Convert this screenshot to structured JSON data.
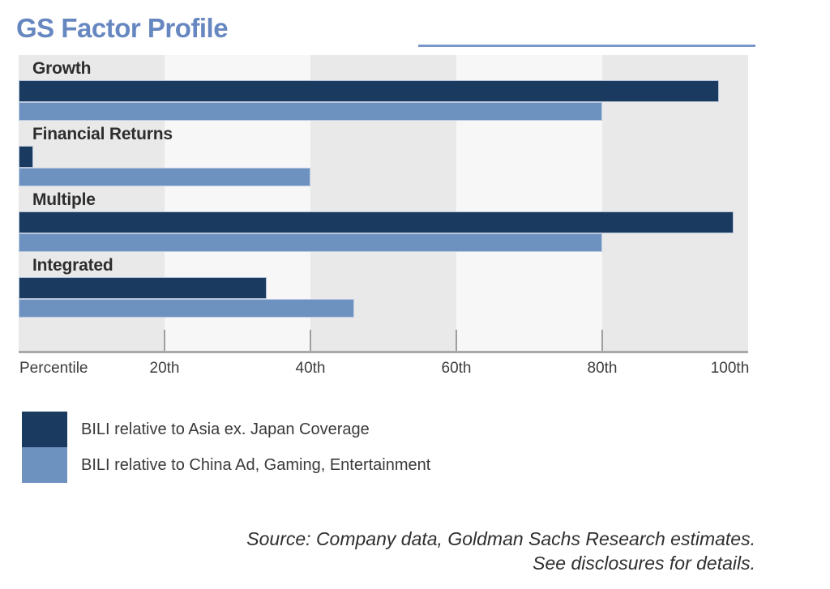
{
  "title": "GS Factor Profile",
  "chart_data": {
    "type": "bar",
    "orientation": "horizontal",
    "title": "GS Factor Profile",
    "categories": [
      "Growth",
      "Financial Returns",
      "Multiple",
      "Integrated"
    ],
    "series": [
      {
        "name": "BILI relative to Asia ex. Japan Coverage",
        "color": "#1b3a5f",
        "values": [
          96,
          2,
          98,
          34
        ]
      },
      {
        "name": "BILI relative to China Ad, Gaming, Entertainment",
        "color": "#6e92c0",
        "values": [
          80,
          40,
          80,
          46
        ]
      }
    ],
    "xlabel": "Percentile",
    "xlim": [
      0,
      100
    ],
    "x_ticks": [
      {
        "value": 20,
        "label": "20th"
      },
      {
        "value": 40,
        "label": "40th"
      },
      {
        "value": 60,
        "label": "60th"
      },
      {
        "value": 80,
        "label": "80th"
      },
      {
        "value": 100,
        "label": "100th"
      }
    ],
    "grid": "vertical-bands",
    "band_colors": [
      "#e9e9e9",
      "#f7f7f7"
    ],
    "axis_line_color": "#a9a9a9",
    "legend_position": "bottom-left",
    "accent_color": "#6787c0"
  },
  "source": {
    "line1": "Source: Company data, Goldman Sachs Research estimates.",
    "line2": "See disclosures for details."
  }
}
